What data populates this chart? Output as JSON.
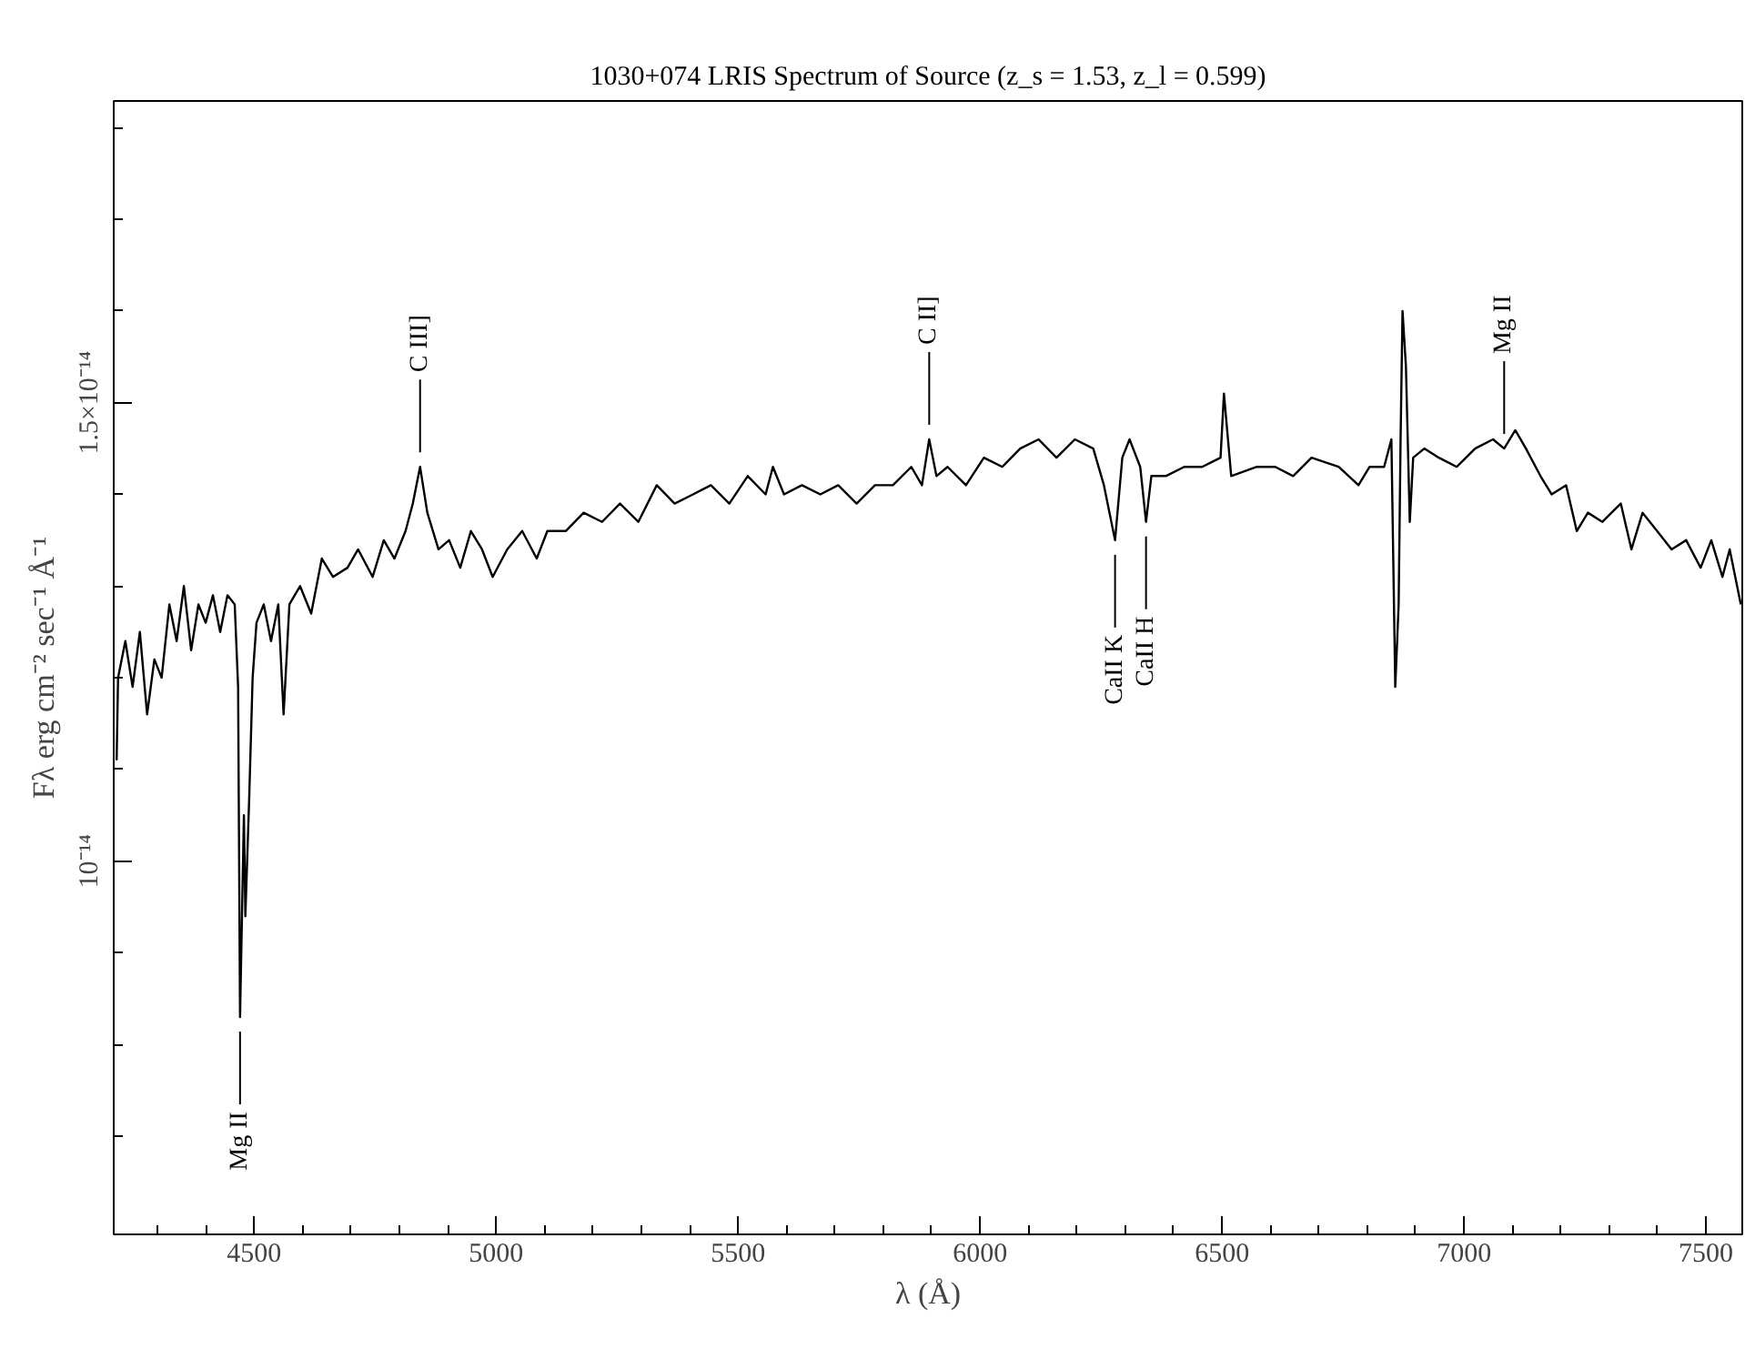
{
  "chart_data": {
    "type": "line",
    "title": "1030+074 LRIS Spectrum of Source (z_s = 1.53, z_l = 0.599)",
    "xlabel": "λ (Å)",
    "ylabel": "Fλ erg cm⁻² sec⁻¹ Å⁻¹",
    "xlim": [
      4210,
      7575
    ],
    "xticks": [
      {
        "value": 4300,
        "label": null
      },
      {
        "value": 4400,
        "label": null
      },
      4500,
      {
        "value": 4600,
        "label": null
      },
      {
        "value": 4700,
        "label": null
      },
      {
        "value": 4800,
        "label": null
      },
      {
        "value": 4900,
        "label": null
      },
      5000,
      {
        "value": 5100,
        "label": null
      },
      {
        "value": 5200,
        "label": null
      },
      {
        "value": 5300,
        "label": null
      },
      {
        "value": 5400,
        "label": null
      },
      5500,
      {
        "value": 5600,
        "label": null
      },
      {
        "value": 5700,
        "label": null
      },
      {
        "value": 5800,
        "label": null
      },
      {
        "value": 5900,
        "label": null
      },
      6000,
      {
        "value": 6100,
        "label": null
      },
      {
        "value": 6200,
        "label": null
      },
      {
        "value": 6300,
        "label": null
      },
      {
        "value": 6400,
        "label": null
      },
      6500,
      {
        "value": 6600,
        "label": null
      },
      {
        "value": 6700,
        "label": null
      },
      {
        "value": 6800,
        "label": null
      },
      {
        "value": 6900,
        "label": null
      },
      7000,
      {
        "value": 7100,
        "label": null
      },
      {
        "value": 7200,
        "label": null
      },
      {
        "value": 7300,
        "label": null
      },
      {
        "value": 7400,
        "label": null
      },
      7500
    ],
    "ylim": [
      5.93e-15,
      1.829e-14
    ],
    "yticks": [
      {
        "value": 7e-15,
        "label": null
      },
      {
        "value": 8e-15,
        "label": null
      },
      {
        "value": 9e-15,
        "label": null
      },
      {
        "value": 1e-14,
        "label": "10⁻¹⁴"
      },
      {
        "value": 1.1e-14,
        "label": null
      },
      {
        "value": 1.2e-14,
        "label": null
      },
      {
        "value": 1.3e-14,
        "label": null
      },
      {
        "value": 1.4e-14,
        "label": null
      },
      {
        "value": 1.5e-14,
        "label": "1.5×10⁻¹⁴"
      },
      {
        "value": 1.6e-14,
        "label": null
      },
      {
        "value": 1.7e-14,
        "label": null
      },
      {
        "value": 1.8e-14,
        "label": null
      }
    ],
    "grid": false,
    "line_style": "solid",
    "annotations": [
      {
        "text": "Mg II",
        "x": 4471,
        "y": 8.3e-15
      },
      {
        "text": "C III]",
        "x": 4843,
        "y": 1.43e-14
      },
      {
        "text": "C II]",
        "x": 5895,
        "y": 1.46e-14
      },
      {
        "text": "CaII K",
        "x": 6279,
        "y": 1.35e-14
      },
      {
        "text": "CaII H",
        "x": 6343,
        "y": 1.37e-14
      },
      {
        "text": "Mg II",
        "x": 7083,
        "y": 1.45e-14
      }
    ],
    "series": [
      {
        "color": "#000000",
        "x": [
          4216,
          4219,
          4234,
          4249,
          4264,
          4279,
          4294,
          4309,
          4325,
          4340,
          4355,
          4370,
          4385,
          4400,
          4415,
          4430,
          4445,
          4460,
          4467,
          4471,
          4479,
          4482,
          4490,
          4497,
          4505,
          4520,
          4535,
          4550,
          4561,
          4573,
          4595,
          4618,
          4640,
          4663,
          4693,
          4715,
          4745,
          4768,
          4790,
          4813,
          4828,
          4843,
          4858,
          4881,
          4903,
          4926,
          4948,
          4971,
          4993,
          5023,
          5054,
          5084,
          5106,
          5144,
          5181,
          5219,
          5256,
          5294,
          5332,
          5369,
          5407,
          5444,
          5482,
          5520,
          5557,
          5572,
          5595,
          5632,
          5670,
          5707,
          5745,
          5783,
          5820,
          5858,
          5880,
          5895,
          5910,
          5933,
          5971,
          6008,
          6046,
          6083,
          6121,
          6158,
          6196,
          6234,
          6256,
          6279,
          6294,
          6309,
          6331,
          6343,
          6354,
          6384,
          6422,
          6459,
          6497,
          6504,
          6519,
          6572,
          6610,
          6647,
          6685,
          6741,
          6782,
          6805,
          6835,
          6850,
          6858,
          6865,
          6869,
          6873,
          6880,
          6888,
          6895,
          6918,
          6948,
          6985,
          7023,
          7060,
          7083,
          7106,
          7128,
          7158,
          7181,
          7211,
          7233,
          7256,
          7286,
          7324,
          7346,
          7369,
          7399,
          7429,
          7459,
          7489,
          7511,
          7534,
          7549,
          7572
        ],
        "values": [
          1.11e-14,
          1.2e-14,
          1.24e-14,
          1.19e-14,
          1.25e-14,
          1.16e-14,
          1.22e-14,
          1.2e-14,
          1.28e-14,
          1.24e-14,
          1.3e-14,
          1.23e-14,
          1.28e-14,
          1.26e-14,
          1.29e-14,
          1.25e-14,
          1.29e-14,
          1.28e-14,
          1.19e-14,
          8.3e-15,
          1.05e-14,
          9.4e-15,
          1.07e-14,
          1.2e-14,
          1.26e-14,
          1.28e-14,
          1.24e-14,
          1.28e-14,
          1.16e-14,
          1.28e-14,
          1.3e-14,
          1.27e-14,
          1.33e-14,
          1.31e-14,
          1.32e-14,
          1.34e-14,
          1.31e-14,
          1.35e-14,
          1.33e-14,
          1.36e-14,
          1.39e-14,
          1.43e-14,
          1.38e-14,
          1.34e-14,
          1.35e-14,
          1.32e-14,
          1.36e-14,
          1.34e-14,
          1.31e-14,
          1.34e-14,
          1.36e-14,
          1.33e-14,
          1.36e-14,
          1.36e-14,
          1.38e-14,
          1.37e-14,
          1.39e-14,
          1.37e-14,
          1.41e-14,
          1.39e-14,
          1.4e-14,
          1.41e-14,
          1.39e-14,
          1.42e-14,
          1.4e-14,
          1.43e-14,
          1.4e-14,
          1.41e-14,
          1.4e-14,
          1.41e-14,
          1.39e-14,
          1.41e-14,
          1.41e-14,
          1.43e-14,
          1.41e-14,
          1.46e-14,
          1.42e-14,
          1.43e-14,
          1.41e-14,
          1.44e-14,
          1.43e-14,
          1.45e-14,
          1.46e-14,
          1.44e-14,
          1.46e-14,
          1.45e-14,
          1.41e-14,
          1.35e-14,
          1.44e-14,
          1.46e-14,
          1.43e-14,
          1.37e-14,
          1.42e-14,
          1.42e-14,
          1.43e-14,
          1.43e-14,
          1.44e-14,
          1.51e-14,
          1.42e-14,
          1.43e-14,
          1.43e-14,
          1.42e-14,
          1.44e-14,
          1.43e-14,
          1.41e-14,
          1.43e-14,
          1.43e-14,
          1.46e-14,
          1.19e-14,
          1.28e-14,
          1.46e-14,
          1.6e-14,
          1.54e-14,
          1.37e-14,
          1.44e-14,
          1.45e-14,
          1.44e-14,
          1.43e-14,
          1.45e-14,
          1.46e-14,
          1.45e-14,
          1.47e-14,
          1.45e-14,
          1.42e-14,
          1.4e-14,
          1.41e-14,
          1.36e-14,
          1.38e-14,
          1.37e-14,
          1.39e-14,
          1.34e-14,
          1.38e-14,
          1.36e-14,
          1.34e-14,
          1.35e-14,
          1.32e-14,
          1.35e-14,
          1.31e-14,
          1.34e-14,
          1.28e-14
        ]
      }
    ]
  }
}
